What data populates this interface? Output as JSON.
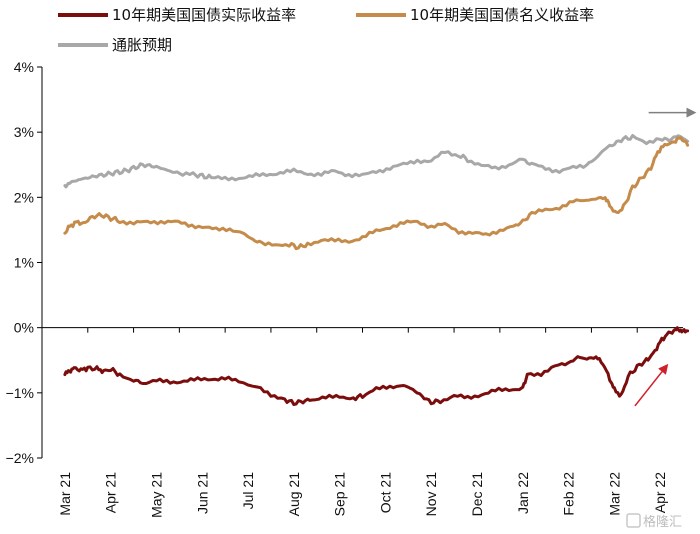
{
  "chart_data": {
    "type": "line",
    "y_ticks": [
      "4%",
      "3%",
      "2%",
      "1%",
      "0%",
      "−1%",
      "−2%"
    ],
    "ylim": [
      -2,
      4
    ],
    "x_ticks": [
      "Mar 21",
      "Apr 21",
      "May 21",
      "Jun 21",
      "Jul 21",
      "Aug 21",
      "Sep 21",
      "Oct 21",
      "Nov 21",
      "Dec 21",
      "Jan 22",
      "Feb 22",
      "Mar 22",
      "Apr 22"
    ],
    "series": [
      {
        "name": "10年期美国国债实际收益率",
        "color": "#7b0d0d",
        "values": [
          [
            0,
            -0.72
          ],
          [
            0.1,
            -0.66
          ],
          [
            0.2,
            -0.62
          ],
          [
            0.35,
            -0.65
          ],
          [
            0.5,
            -0.62
          ],
          [
            0.7,
            -0.63
          ],
          [
            0.85,
            -0.67
          ],
          [
            1.0,
            -0.64
          ],
          [
            1.2,
            -0.72
          ],
          [
            1.5,
            -0.8
          ],
          [
            1.7,
            -0.85
          ],
          [
            2.0,
            -0.82
          ],
          [
            2.3,
            -0.83
          ],
          [
            2.6,
            -0.82
          ],
          [
            2.9,
            -0.8
          ],
          [
            3.2,
            -0.78
          ],
          [
            3.5,
            -0.78
          ],
          [
            3.8,
            -0.83
          ],
          [
            4.2,
            -0.92
          ],
          [
            4.5,
            -1.02
          ],
          [
            4.8,
            -1.1
          ],
          [
            5.0,
            -1.16
          ],
          [
            5.2,
            -1.13
          ],
          [
            5.4,
            -1.1
          ],
          [
            5.7,
            -1.08
          ],
          [
            6.0,
            -1.05
          ],
          [
            6.3,
            -1.08
          ],
          [
            6.5,
            -1.05
          ],
          [
            6.8,
            -0.95
          ],
          [
            7.1,
            -0.9
          ],
          [
            7.4,
            -0.88
          ],
          [
            7.6,
            -0.95
          ],
          [
            7.8,
            -1.05
          ],
          [
            8.0,
            -1.15
          ],
          [
            8.2,
            -1.12
          ],
          [
            8.5,
            -1.05
          ],
          [
            8.8,
            -1.08
          ],
          [
            9.1,
            -1.02
          ],
          [
            9.4,
            -0.97
          ],
          [
            9.7,
            -0.95
          ],
          [
            10.0,
            -0.92
          ],
          [
            10.1,
            -0.72
          ],
          [
            10.4,
            -0.7
          ],
          [
            10.7,
            -0.6
          ],
          [
            11.0,
            -0.55
          ],
          [
            11.2,
            -0.45
          ],
          [
            11.4,
            -0.48
          ],
          [
            11.6,
            -0.45
          ],
          [
            11.75,
            -0.55
          ],
          [
            11.9,
            -0.78
          ],
          [
            12.0,
            -0.95
          ],
          [
            12.15,
            -1.05
          ],
          [
            12.3,
            -0.75
          ],
          [
            12.5,
            -0.6
          ],
          [
            12.7,
            -0.5
          ],
          [
            12.85,
            -0.4
          ],
          [
            13.0,
            -0.22
          ],
          [
            13.15,
            -0.1
          ],
          [
            13.3,
            -0.05
          ],
          [
            13.4,
            -0.02
          ],
          [
            13.5,
            -0.06
          ],
          [
            13.6,
            -0.05
          ]
        ]
      },
      {
        "name": "10年期美国国债名义收益率",
        "color": "#c58b4a",
        "values": [
          [
            0,
            1.45
          ],
          [
            0.1,
            1.55
          ],
          [
            0.25,
            1.62
          ],
          [
            0.4,
            1.6
          ],
          [
            0.6,
            1.7
          ],
          [
            0.8,
            1.73
          ],
          [
            1.0,
            1.68
          ],
          [
            1.2,
            1.64
          ],
          [
            1.5,
            1.6
          ],
          [
            1.8,
            1.62
          ],
          [
            2.1,
            1.63
          ],
          [
            2.4,
            1.62
          ],
          [
            2.7,
            1.58
          ],
          [
            3.0,
            1.55
          ],
          [
            3.3,
            1.5
          ],
          [
            3.6,
            1.52
          ],
          [
            3.9,
            1.45
          ],
          [
            4.1,
            1.35
          ],
          [
            4.3,
            1.3
          ],
          [
            4.6,
            1.25
          ],
          [
            4.9,
            1.28
          ],
          [
            5.1,
            1.23
          ],
          [
            5.3,
            1.28
          ],
          [
            5.6,
            1.35
          ],
          [
            5.9,
            1.33
          ],
          [
            6.2,
            1.33
          ],
          [
            6.5,
            1.38
          ],
          [
            6.8,
            1.48
          ],
          [
            7.1,
            1.55
          ],
          [
            7.4,
            1.6
          ],
          [
            7.7,
            1.63
          ],
          [
            8.0,
            1.55
          ],
          [
            8.3,
            1.58
          ],
          [
            8.6,
            1.48
          ],
          [
            8.9,
            1.45
          ],
          [
            9.2,
            1.42
          ],
          [
            9.5,
            1.5
          ],
          [
            9.8,
            1.55
          ],
          [
            10.0,
            1.63
          ],
          [
            10.2,
            1.75
          ],
          [
            10.5,
            1.8
          ],
          [
            10.8,
            1.85
          ],
          [
            11.1,
            1.93
          ],
          [
            11.4,
            1.95
          ],
          [
            11.6,
            1.98
          ],
          [
            11.8,
            2.0
          ],
          [
            11.9,
            1.87
          ],
          [
            12.05,
            1.75
          ],
          [
            12.2,
            1.85
          ],
          [
            12.4,
            2.15
          ],
          [
            12.6,
            2.3
          ],
          [
            12.8,
            2.45
          ],
          [
            12.95,
            2.7
          ],
          [
            13.1,
            2.8
          ],
          [
            13.3,
            2.85
          ],
          [
            13.45,
            2.92
          ],
          [
            13.6,
            2.8
          ]
        ]
      },
      {
        "name": "通胀预期",
        "color": "#a8a8a8",
        "values": [
          [
            0,
            2.18
          ],
          [
            0.1,
            2.22
          ],
          [
            0.3,
            2.27
          ],
          [
            0.5,
            2.3
          ],
          [
            0.7,
            2.33
          ],
          [
            0.9,
            2.35
          ],
          [
            1.1,
            2.38
          ],
          [
            1.3,
            2.4
          ],
          [
            1.5,
            2.45
          ],
          [
            1.7,
            2.5
          ],
          [
            1.9,
            2.48
          ],
          [
            2.1,
            2.45
          ],
          [
            2.3,
            2.4
          ],
          [
            2.5,
            2.37
          ],
          [
            2.8,
            2.35
          ],
          [
            3.0,
            2.33
          ],
          [
            3.2,
            2.3
          ],
          [
            3.5,
            2.28
          ],
          [
            3.8,
            2.3
          ],
          [
            4.1,
            2.32
          ],
          [
            4.4,
            2.35
          ],
          [
            4.7,
            2.38
          ],
          [
            5.0,
            2.4
          ],
          [
            5.3,
            2.37
          ],
          [
            5.6,
            2.35
          ],
          [
            5.9,
            2.4
          ],
          [
            6.2,
            2.35
          ],
          [
            6.5,
            2.33
          ],
          [
            6.8,
            2.4
          ],
          [
            7.1,
            2.45
          ],
          [
            7.4,
            2.5
          ],
          [
            7.7,
            2.57
          ],
          [
            8.0,
            2.55
          ],
          [
            8.3,
            2.7
          ],
          [
            8.6,
            2.65
          ],
          [
            8.8,
            2.58
          ],
          [
            9.1,
            2.48
          ],
          [
            9.4,
            2.45
          ],
          [
            9.7,
            2.5
          ],
          [
            10.0,
            2.58
          ],
          [
            10.2,
            2.5
          ],
          [
            10.5,
            2.45
          ],
          [
            10.8,
            2.4
          ],
          [
            11.1,
            2.45
          ],
          [
            11.4,
            2.5
          ],
          [
            11.6,
            2.6
          ],
          [
            11.8,
            2.75
          ],
          [
            12.0,
            2.82
          ],
          [
            12.2,
            2.9
          ],
          [
            12.4,
            2.92
          ],
          [
            12.7,
            2.85
          ],
          [
            13.0,
            2.9
          ],
          [
            13.2,
            2.88
          ],
          [
            13.4,
            2.95
          ],
          [
            13.6,
            2.86
          ]
        ]
      }
    ],
    "annotations": [
      {
        "kind": "arrow",
        "color": "#808080",
        "from": [
          12.75,
          3.3
        ],
        "to": [
          13.75,
          3.3
        ]
      },
      {
        "kind": "arrow",
        "color": "#d0202a",
        "from": [
          12.45,
          -1.2
        ],
        "to": [
          13.15,
          -0.58
        ]
      }
    ]
  },
  "watermark": "格隆汇"
}
